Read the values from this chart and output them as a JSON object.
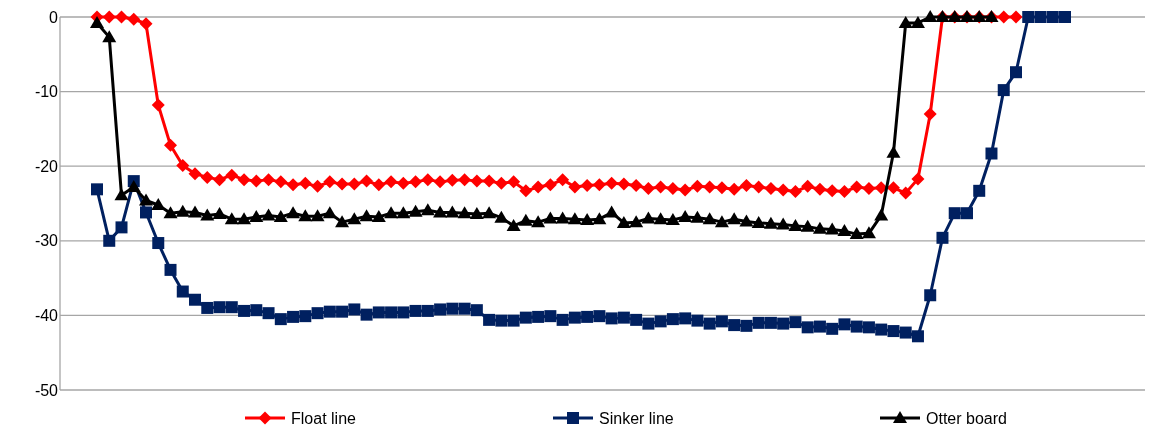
{
  "chart_data": {
    "type": "line",
    "categories": [
      null,
      null,
      null,
      null,
      null,
      null,
      null,
      null,
      null,
      null,
      null,
      null,
      null,
      null,
      null,
      null,
      null,
      null,
      null,
      null,
      null,
      null,
      null,
      null,
      null,
      null,
      null,
      null,
      null,
      null,
      null,
      null,
      null,
      null,
      null,
      null,
      null,
      null,
      null,
      null,
      null,
      null,
      null,
      null,
      null,
      null,
      null,
      null,
      null,
      null,
      null,
      null,
      null,
      null,
      null,
      null,
      null,
      null,
      null,
      null,
      null,
      null,
      null,
      null,
      null,
      null,
      null,
      null,
      null,
      null,
      null,
      null,
      null,
      null,
      null,
      null,
      null,
      null,
      null,
      null
    ],
    "series": [
      {
        "name": "Float line",
        "color": "#ff0000",
        "marker": "diamond",
        "values": [
          0,
          0,
          0,
          -0.3,
          -0.9,
          -11.8,
          -17.2,
          -19.9,
          -21,
          -21.5,
          -21.8,
          -21.2,
          -21.8,
          -22,
          -21.8,
          -22.1,
          -22.5,
          -22.3,
          -22.7,
          -22.1,
          -22.4,
          -22.4,
          -22,
          -22.5,
          -22.1,
          -22.3,
          -22.1,
          -21.8,
          -22.1,
          -21.9,
          -21.8,
          -22,
          -22,
          -22.3,
          -22.1,
          -23.3,
          -22.8,
          -22.5,
          -21.8,
          -22.8,
          -22.6,
          -22.5,
          -22.3,
          -22.4,
          -22.6,
          -23,
          -22.8,
          -23,
          -23.2,
          -22.7,
          -22.8,
          -22.9,
          -23.1,
          -22.6,
          -22.8,
          -23,
          -23.2,
          -23.4,
          -22.7,
          -23.1,
          -23.3,
          -23.4,
          -22.8,
          -23,
          -22.9,
          -22.9,
          -23.6,
          -21.7,
          -13,
          0,
          0,
          0,
          0,
          0,
          0,
          0,
          null,
          null,
          null,
          null
        ]
      },
      {
        "name": "Sinker line",
        "color": "#002060",
        "marker": "square",
        "values": [
          -23.1,
          -30,
          -28.2,
          -22,
          -26.2,
          -30.3,
          -33.9,
          -36.8,
          -37.9,
          -39,
          -38.9,
          -38.9,
          -39.4,
          -39.3,
          -39.7,
          -40.5,
          -40.2,
          -40.1,
          -39.7,
          -39.5,
          -39.5,
          -39.2,
          -39.9,
          -39.6,
          -39.6,
          -39.6,
          -39.4,
          -39.4,
          -39.2,
          -39.1,
          -39.1,
          -39.3,
          -40.6,
          -40.7,
          -40.7,
          -40.3,
          -40.2,
          -40.1,
          -40.6,
          -40.3,
          -40.2,
          -40.1,
          -40.4,
          -40.3,
          -40.6,
          -41.1,
          -40.8,
          -40.5,
          -40.4,
          -40.7,
          -41.1,
          -40.8,
          -41.3,
          -41.4,
          -41,
          -41,
          -41.1,
          -40.9,
          -41.6,
          -41.5,
          -41.8,
          -41.2,
          -41.5,
          -41.6,
          -41.9,
          -42.1,
          -42.3,
          -42.8,
          -37.3,
          -29.6,
          -26.3,
          -26.3,
          -23.3,
          -18.3,
          -9.8,
          -7.4,
          0,
          0,
          0,
          0
        ]
      },
      {
        "name": "Otter board",
        "color": "#000000",
        "marker": "triangle",
        "values": [
          -0.8,
          -2.7,
          -23.9,
          -22.8,
          -24.6,
          -25.2,
          -26.3,
          -26.1,
          -26.2,
          -26.6,
          -26.4,
          -27.1,
          -27.1,
          -26.8,
          -26.6,
          -26.8,
          -26.3,
          -26.7,
          -26.7,
          -26.3,
          -27.5,
          -27.1,
          -26.7,
          -26.8,
          -26.3,
          -26.3,
          -26.1,
          -25.9,
          -26.2,
          -26.2,
          -26.3,
          -26.4,
          -26.3,
          -26.9,
          -28,
          -27.3,
          -27.5,
          -27,
          -27,
          -27.1,
          -27.2,
          -27.1,
          -26.2,
          -27.6,
          -27.5,
          -27,
          -27.1,
          -27.2,
          -26.8,
          -26.9,
          -27.1,
          -27.5,
          -27.1,
          -27.4,
          -27.6,
          -27.7,
          -27.8,
          -28,
          -28.1,
          -28.4,
          -28.5,
          -28.7,
          -29.1,
          -29,
          -26.6,
          -18.2,
          -0.8,
          -0.8,
          0,
          0,
          0,
          0,
          0,
          0,
          null,
          null,
          null,
          null,
          null,
          null
        ]
      }
    ],
    "ylim": [
      -50,
      0
    ],
    "yticks": [
      -50,
      -40,
      -30,
      -20,
      -10,
      0
    ],
    "grid": "y",
    "legend": "bottom"
  }
}
